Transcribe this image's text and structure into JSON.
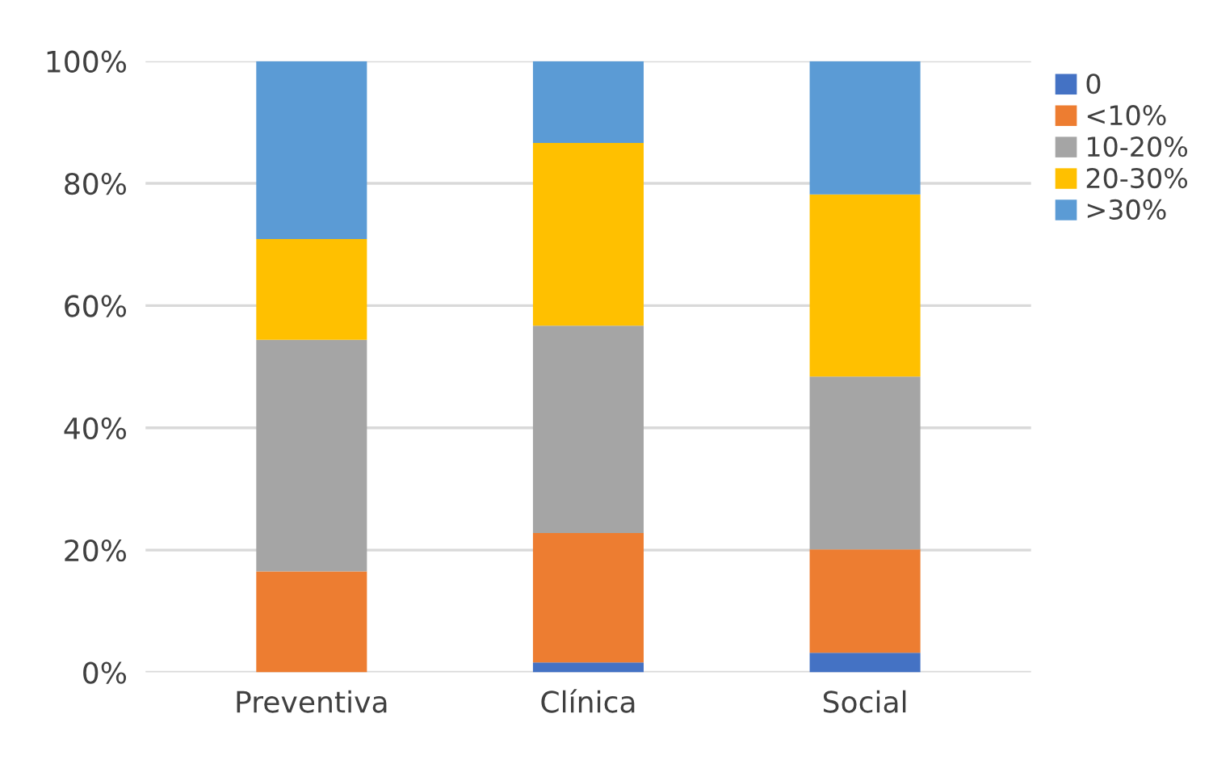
{
  "chart_data": {
    "type": "bar",
    "stacked": true,
    "categories": [
      "Preventiva",
      "Clínica",
      "Social"
    ],
    "series": [
      {
        "name": "0",
        "color": "#4472c4",
        "values": [
          0,
          1.6,
          3.2
        ]
      },
      {
        "name": "<10%",
        "color": "#ed7d31",
        "values": [
          16.5,
          21.2,
          16.9
        ]
      },
      {
        "name": "10-20%",
        "color": "#a5a5a5",
        "values": [
          37.9,
          33.9,
          28.3
        ]
      },
      {
        "name": "20-30%",
        "color": "#ffc000",
        "values": [
          16.5,
          29.9,
          29.8
        ]
      },
      {
        "name": ">30%",
        "color": "#5b9bd5",
        "values": [
          29.1,
          13.4,
          21.8
        ]
      }
    ],
    "ylim": [
      0,
      100
    ],
    "yticks": [
      {
        "value": 0,
        "label": "0%"
      },
      {
        "value": 20,
        "label": "20%"
      },
      {
        "value": 40,
        "label": "40%"
      },
      {
        "value": 60,
        "label": "60%"
      },
      {
        "value": 80,
        "label": "80%"
      },
      {
        "value": 100,
        "label": "100%"
      }
    ],
    "grid": "y",
    "legend": "top right"
  }
}
